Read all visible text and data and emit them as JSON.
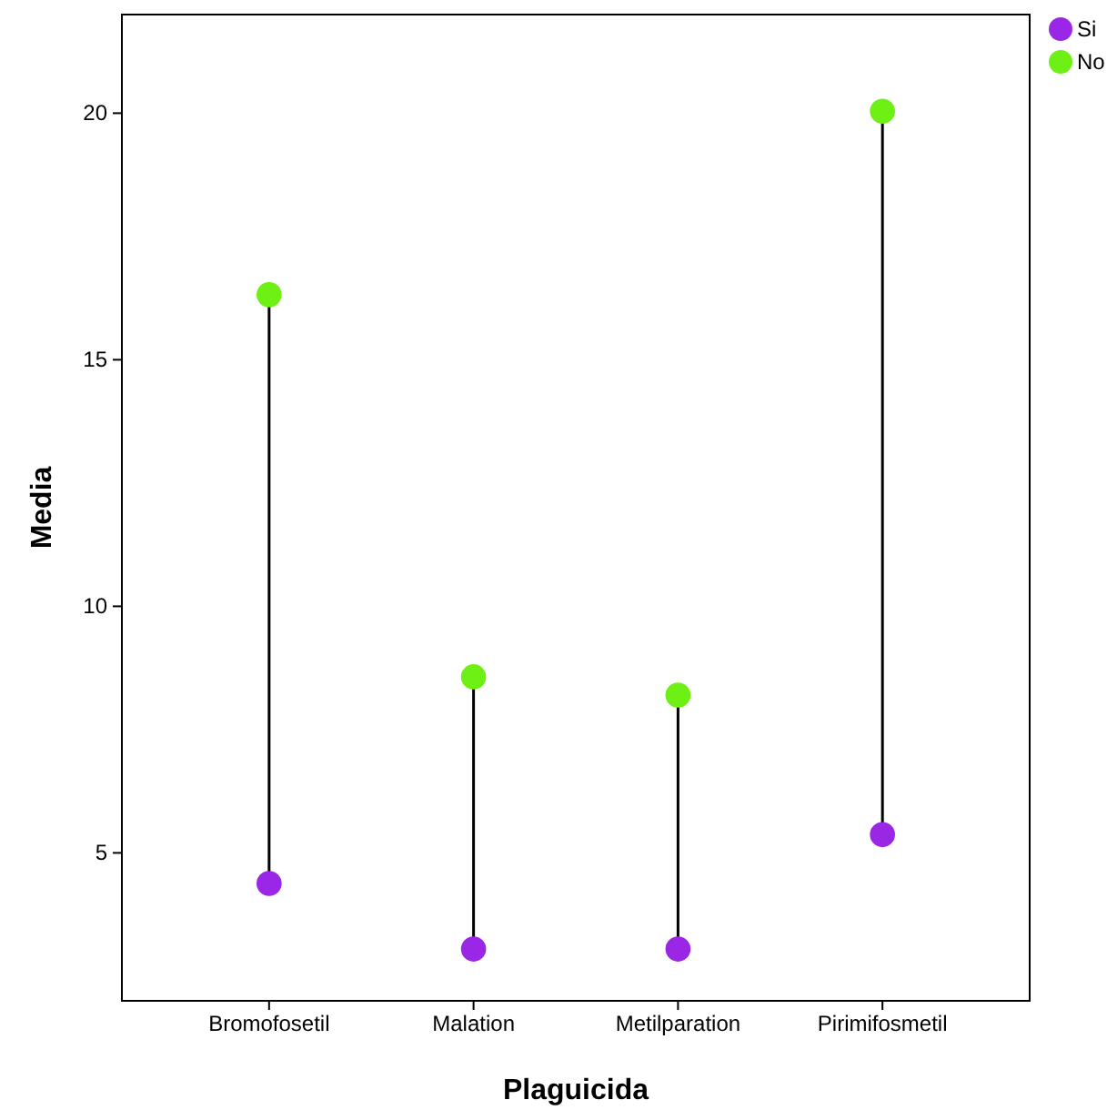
{
  "chart_data": {
    "type": "scatter",
    "xlabel": "Plaguicida",
    "ylabel": "Media",
    "categories": [
      "Bromofosetil",
      "Malation",
      "Metilparation",
      "Pirimifosmetil"
    ],
    "series": [
      {
        "name": "Si",
        "color": "#9b27e6",
        "values": [
          4.38,
          3.05,
          3.05,
          5.37
        ]
      },
      {
        "name": "No",
        "color": "#6ef014",
        "values": [
          16.32,
          8.57,
          8.2,
          20.04
        ]
      }
    ],
    "ylim": [
      2,
      22
    ],
    "yticks": [
      5,
      10,
      15,
      20
    ],
    "legend": "top right",
    "marker": "circle"
  }
}
